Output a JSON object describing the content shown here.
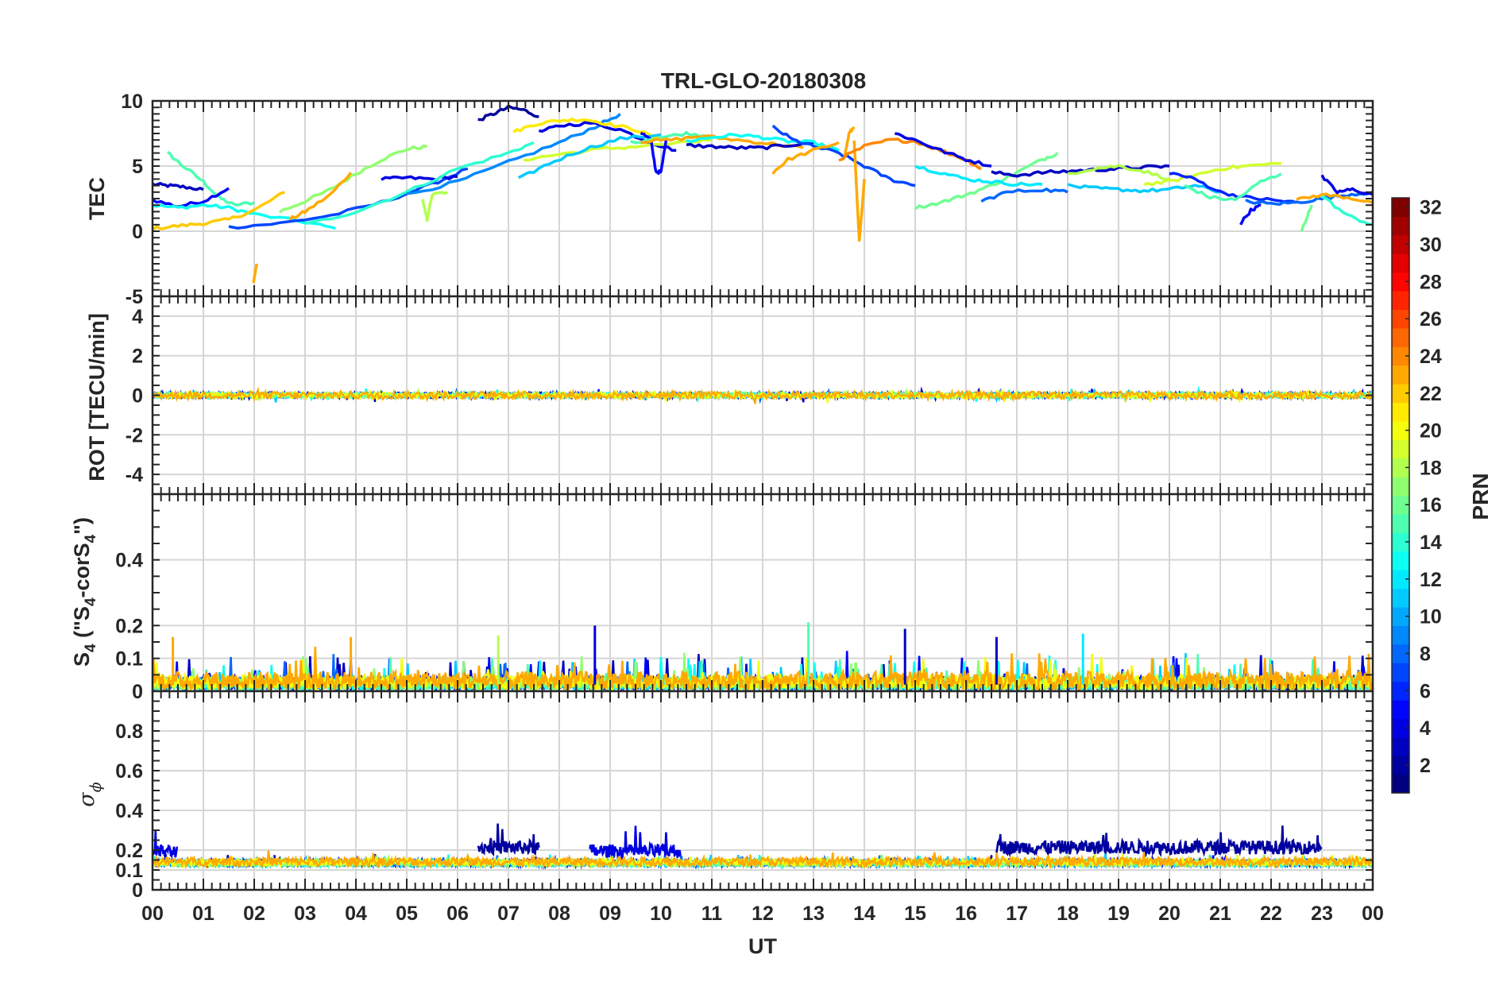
{
  "figure": {
    "title": "TRL-GLO-20180308"
  },
  "chart_data": [
    {
      "type": "line",
      "panel": "tec",
      "ylabel": "TEC",
      "ylim": [
        -5,
        10
      ],
      "yticks": [
        "10",
        "5",
        "0",
        "-5"
      ],
      "grid": true,
      "series_note": "GLONASS PRN tracks colored by PRN",
      "series": [
        {
          "prn": 3,
          "x": [
            0.0,
            0.3,
            0.6,
            1.0
          ],
          "y": [
            3.6,
            3.5,
            3.4,
            3.2
          ]
        },
        {
          "prn": 15,
          "x": [
            0.3,
            0.6,
            1.0,
            1.3,
            1.6,
            2.0
          ],
          "y": [
            6.0,
            5.0,
            3.8,
            2.6,
            2.0,
            2.2
          ]
        },
        {
          "prn": 5,
          "x": [
            0.0,
            0.5,
            1.0,
            1.5
          ],
          "y": [
            2.4,
            1.9,
            2.3,
            3.3
          ]
        },
        {
          "prn": 13,
          "x": [
            0.0,
            0.5,
            1.0,
            1.5,
            2.0,
            3.0,
            3.6
          ],
          "y": [
            2.0,
            1.8,
            2.0,
            1.8,
            1.3,
            0.7,
            0.2
          ]
        },
        {
          "prn": 22,
          "x": [
            0.0,
            0.5,
            1.0,
            1.5,
            2.0,
            2.6
          ],
          "y": [
            0.2,
            0.4,
            0.6,
            0.9,
            1.6,
            3.0
          ]
        },
        {
          "prn": 23,
          "x": [
            1.98,
            2.05
          ],
          "y": [
            -4.0,
            -2.5
          ]
        },
        {
          "prn": 17,
          "x": [
            2.5,
            3.0,
            3.5,
            4.0,
            4.5,
            5.0,
            5.4
          ],
          "y": [
            1.5,
            2.3,
            3.2,
            4.4,
            5.5,
            6.3,
            6.5
          ]
        },
        {
          "prn": 23,
          "x": [
            2.7,
            3.0,
            3.5,
            3.9
          ],
          "y": [
            0.9,
            1.5,
            2.8,
            4.5
          ]
        },
        {
          "prn": 7,
          "x": [
            1.5,
            2.5,
            3.5,
            4.5,
            5.5,
            6.2
          ],
          "y": [
            0.3,
            0.6,
            1.2,
            2.2,
            3.6,
            4.8
          ]
        },
        {
          "prn": 4,
          "x": [
            4.5,
            5.0,
            5.5,
            6.0
          ],
          "y": [
            4.0,
            4.1,
            4.0,
            4.2
          ]
        },
        {
          "prn": 18,
          "x": [
            5.3,
            5.4,
            5.5,
            5.8
          ],
          "y": [
            2.5,
            0.9,
            2.8,
            3.0
          ]
        },
        {
          "prn": 14,
          "x": [
            3.0,
            4.0,
            5.0,
            6.0,
            7.0,
            7.5
          ],
          "y": [
            0.5,
            1.5,
            3.0,
            4.8,
            6.0,
            6.8
          ]
        },
        {
          "prn": 2,
          "x": [
            6.4,
            6.7,
            7.0,
            7.3,
            7.6
          ],
          "y": [
            8.5,
            9.0,
            9.5,
            9.3,
            8.8
          ]
        },
        {
          "prn": 9,
          "x": [
            5.0,
            6.0,
            7.0,
            8.0,
            8.7,
            9.2
          ],
          "y": [
            2.8,
            3.8,
            5.3,
            6.8,
            8.0,
            9.0
          ]
        },
        {
          "prn": 4,
          "x": [
            7.6,
            8.0,
            8.6,
            9.2,
            9.8,
            10.3
          ],
          "y": [
            7.6,
            8.1,
            8.3,
            7.8,
            6.8,
            6.2
          ]
        },
        {
          "prn": 21,
          "x": [
            7.1,
            7.5,
            8.0,
            8.5,
            9.0,
            9.5,
            10.0
          ],
          "y": [
            7.6,
            8.2,
            8.5,
            8.6,
            8.2,
            7.8,
            7.0
          ]
        },
        {
          "prn": 19,
          "x": [
            7.3,
            8.0,
            8.8,
            9.5,
            10.5,
            11.0
          ],
          "y": [
            5.5,
            5.9,
            6.3,
            6.5,
            6.8,
            7.0
          ]
        },
        {
          "prn": 11,
          "x": [
            7.2,
            7.8,
            8.5,
            9.2,
            10.0
          ],
          "y": [
            4.0,
            5.2,
            6.3,
            7.1,
            7.4
          ]
        },
        {
          "prn": 5,
          "x": [
            9.6,
            9.8,
            9.9,
            10.0,
            10.1
          ],
          "y": [
            7.6,
            7.0,
            4.6,
            4.5,
            7.0
          ]
        },
        {
          "prn": 15,
          "x": [
            9.4,
            10.0,
            10.5,
            11.0
          ],
          "y": [
            6.8,
            7.2,
            7.5,
            7.3
          ]
        },
        {
          "prn": 23,
          "x": [
            9.6,
            10.2,
            10.8,
            11.5,
            12.2,
            12.8
          ],
          "y": [
            6.9,
            7.0,
            7.3,
            7.0,
            6.7,
            6.4
          ]
        },
        {
          "prn": 3,
          "x": [
            10.5,
            11.0,
            11.5,
            12.0,
            12.5,
            13.0
          ],
          "y": [
            6.6,
            6.5,
            6.4,
            6.4,
            6.6,
            6.8
          ]
        },
        {
          "prn": 13,
          "x": [
            10.5,
            11.0,
            11.5,
            12.0,
            12.5,
            13.0,
            13.5
          ],
          "y": [
            6.9,
            7.2,
            7.4,
            7.2,
            6.9,
            6.8,
            6.2
          ]
        },
        {
          "prn": 7,
          "x": [
            12.2,
            12.6,
            13.0,
            13.5,
            14.0,
            14.5,
            15.0
          ],
          "y": [
            8.0,
            7.0,
            6.5,
            6.0,
            5.0,
            4.0,
            3.5
          ]
        },
        {
          "prn": 23,
          "x": [
            12.2,
            12.5,
            13.0,
            13.5
          ],
          "y": [
            4.5,
            5.5,
            6.2,
            6.8
          ]
        },
        {
          "prn": 23,
          "x": [
            13.8,
            13.85,
            13.9,
            14.0
          ],
          "y": [
            7.0,
            3.0,
            -0.8,
            4.0
          ]
        },
        {
          "prn": 23,
          "x": [
            13.6,
            13.7,
            13.8
          ],
          "y": [
            5.5,
            7.5,
            8.0
          ]
        },
        {
          "prn": 24,
          "x": [
            13.5,
            14.0,
            14.5,
            15.0,
            15.5,
            16.0,
            16.3
          ],
          "y": [
            5.5,
            6.5,
            7.0,
            6.9,
            6.2,
            5.5,
            4.8
          ]
        },
        {
          "prn": 4,
          "x": [
            14.6,
            15.0,
            15.5,
            16.0,
            16.5
          ],
          "y": [
            7.5,
            7.0,
            6.2,
            5.5,
            5.0
          ]
        },
        {
          "prn": 16,
          "x": [
            15.0,
            15.5,
            16.0,
            16.5,
            17.0,
            17.5,
            17.8
          ],
          "y": [
            1.8,
            2.2,
            2.8,
            3.5,
            4.5,
            5.5,
            6.0
          ]
        },
        {
          "prn": 12,
          "x": [
            15.0,
            15.5,
            16.0,
            16.5,
            17.0,
            17.5
          ],
          "y": [
            5.0,
            4.5,
            4.0,
            3.8,
            3.6,
            3.6
          ]
        },
        {
          "prn": 3,
          "x": [
            16.5,
            17.0,
            17.5,
            18.0,
            18.5,
            19.0,
            19.5,
            20.0
          ],
          "y": [
            4.5,
            4.3,
            4.5,
            4.6,
            4.7,
            4.8,
            4.9,
            5.0
          ]
        },
        {
          "prn": 8,
          "x": [
            16.3,
            16.8,
            17.5,
            18.0
          ],
          "y": [
            2.3,
            3.0,
            3.2,
            3.0
          ]
        },
        {
          "prn": 18,
          "x": [
            18.0,
            18.5,
            19.0,
            19.5,
            20.0
          ],
          "y": [
            4.4,
            4.8,
            5.0,
            4.6,
            4.0
          ]
        },
        {
          "prn": 11,
          "x": [
            18.0,
            18.5,
            19.0,
            19.5,
            20.0,
            20.5,
            21.0
          ],
          "y": [
            3.5,
            3.3,
            3.2,
            3.1,
            3.2,
            3.5,
            3.0
          ]
        },
        {
          "prn": 19,
          "x": [
            19.5,
            20.0,
            20.5,
            21.0,
            21.5,
            22.2
          ],
          "y": [
            3.6,
            3.8,
            4.3,
            4.8,
            5.0,
            5.2
          ]
        },
        {
          "prn": 6,
          "x": [
            20.0,
            20.5,
            21.0,
            21.5,
            22.0,
            22.5
          ],
          "y": [
            4.5,
            4.0,
            3.0,
            2.6,
            2.4,
            2.2
          ]
        },
        {
          "prn": 15,
          "x": [
            20.3,
            20.8,
            21.3,
            21.8,
            22.2
          ],
          "y": [
            3.5,
            2.6,
            2.4,
            3.8,
            4.4
          ]
        },
        {
          "prn": 5,
          "x": [
            21.4,
            21.6,
            21.8
          ],
          "y": [
            0.6,
            1.6,
            2.0
          ]
        },
        {
          "prn": 8,
          "x": [
            21.5,
            22.0,
            22.5,
            23.0,
            23.5,
            24.0
          ],
          "y": [
            2.3,
            2.1,
            2.2,
            2.5,
            2.8,
            3.0
          ]
        },
        {
          "prn": 23,
          "x": [
            22.5,
            23.0,
            23.5,
            24.0
          ],
          "y": [
            2.4,
            2.8,
            2.6,
            2.2
          ]
        },
        {
          "prn": 4,
          "x": [
            23.0,
            23.3,
            23.6,
            24.0
          ],
          "y": [
            4.2,
            3.0,
            3.2,
            2.8
          ]
        },
        {
          "prn": 14,
          "x": [
            23.0,
            23.5,
            24.0
          ],
          "y": [
            2.7,
            1.2,
            0.5
          ]
        },
        {
          "prn": 16,
          "x": [
            22.6,
            22.7,
            22.8
          ],
          "y": [
            0.0,
            1.0,
            2.0
          ]
        }
      ]
    },
    {
      "type": "line",
      "panel": "rot",
      "ylabel": "ROT [TECU/min]",
      "ylim": [
        -5,
        5
      ],
      "yticks": [
        "4",
        "2",
        "0",
        "-2",
        "-4"
      ],
      "grid": true,
      "note": "dense noise band around 0, amplitude about 0.2 TECU/min"
    },
    {
      "type": "line",
      "panel": "s4",
      "ylabel_main": "S",
      "ylabel_sub1": "4",
      "ylabel_mid": " (\"S",
      "ylabel_sub2": "4",
      "ylabel_mid2": "-corS",
      "ylabel_sub3": "4",
      "ylabel_end": "\")",
      "ylim": [
        0,
        0.6
      ],
      "yticks": [
        "0.4",
        "0.2",
        "0.1",
        "0"
      ],
      "grid": true,
      "note": "baseline values 0 to 0.08, spikes up to about 0.21 near 08.7 and 12.9 UT"
    },
    {
      "type": "line",
      "panel": "sigma_phi",
      "ylabel_main": "σ",
      "ylabel_sub": "ϕ",
      "ylim": [
        0,
        1.0
      ],
      "yticks": [
        "0.8",
        "0.6",
        "0.4",
        "0.2",
        "0.1",
        "0"
      ],
      "xlabel": "UT",
      "xticks": [
        "00",
        "01",
        "02",
        "03",
        "04",
        "05",
        "06",
        "07",
        "08",
        "09",
        "10",
        "11",
        "12",
        "13",
        "14",
        "15",
        "16",
        "17",
        "18",
        "19",
        "20",
        "21",
        "22",
        "23",
        "00"
      ],
      "xlim": [
        0,
        24
      ],
      "grid": true,
      "note": "baseline about 0.12 to 0.16; elevated PRN 2-3 band 0.18 to 0.3 during 06.4-07.6 and 16.6-23 UT"
    }
  ],
  "colorbar": {
    "label": "PRN",
    "range": [
      1,
      32
    ],
    "ticks": [
      "32",
      "30",
      "28",
      "26",
      "24",
      "22",
      "20",
      "18",
      "16",
      "14",
      "12",
      "10",
      "8",
      "6",
      "4",
      "2"
    ],
    "colormap": "jet"
  }
}
